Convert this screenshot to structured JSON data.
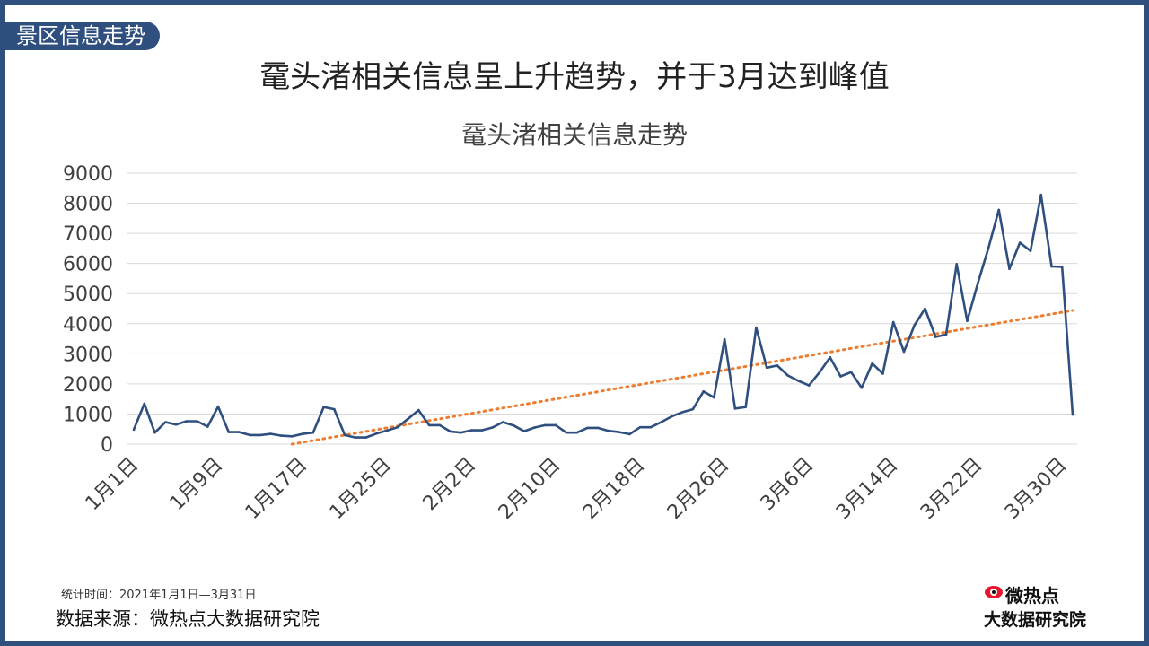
{
  "section_tag": "景区信息走势",
  "headline": "鼋头渚相关信息呈上升趋势，并于3月达到峰值",
  "footnote": {
    "range": "统计时间：2021年1月1日—3月31日",
    "source": "数据来源：微热点大数据研究院"
  },
  "logo": {
    "line1": "微热点",
    "line2": "大数据研究院",
    "icon": "weibo-eye-icon"
  },
  "colors": {
    "frame": "#2f4f7f",
    "series": "#2f4f7f",
    "trend": "#ed7d31",
    "grid": "#d9d9d9"
  },
  "chart_data": {
    "type": "line",
    "title": "鼋头渚相关信息走势",
    "xlabel": "",
    "ylabel": "",
    "ylim": [
      0,
      9000
    ],
    "yticks": [
      0,
      1000,
      2000,
      3000,
      4000,
      5000,
      6000,
      7000,
      8000,
      9000
    ],
    "grid": true,
    "legend": "none",
    "x_tick_labels": [
      "1月1日",
      "1月9日",
      "1月17日",
      "1月25日",
      "2月2日",
      "2月10日",
      "2月18日",
      "2月26日",
      "3月6日",
      "3月14日",
      "3月22日",
      "3月30日"
    ],
    "x_tick_every": 8,
    "series": [
      {
        "values": [
          480,
          1340,
          380,
          730,
          650,
          760,
          760,
          580,
          1250,
          400,
          400,
          300,
          300,
          340,
          280,
          260,
          340,
          380,
          1230,
          1160,
          300,
          220,
          220,
          350,
          450,
          560,
          840,
          1130,
          630,
          630,
          420,
          380,
          460,
          460,
          550,
          730,
          620,
          430,
          550,
          630,
          630,
          380,
          380,
          540,
          540,
          440,
          400,
          330,
          560,
          560,
          730,
          920,
          1060,
          1160,
          1750,
          1550,
          3480,
          1180,
          1230,
          3870,
          2540,
          2610,
          2280,
          2100,
          1950,
          2380,
          2880,
          2250,
          2390,
          1870,
          2680,
          2340,
          4050,
          3070,
          3950,
          4500,
          3560,
          3640,
          5980,
          4090,
          5330,
          6500,
          7780,
          5820,
          6690,
          6420,
          8280,
          5900,
          5890,
          980
        ]
      },
      {
        "type": "linear-trend",
        "start": [
          15,
          0
        ],
        "end": [
          89,
          4440
        ]
      }
    ]
  }
}
